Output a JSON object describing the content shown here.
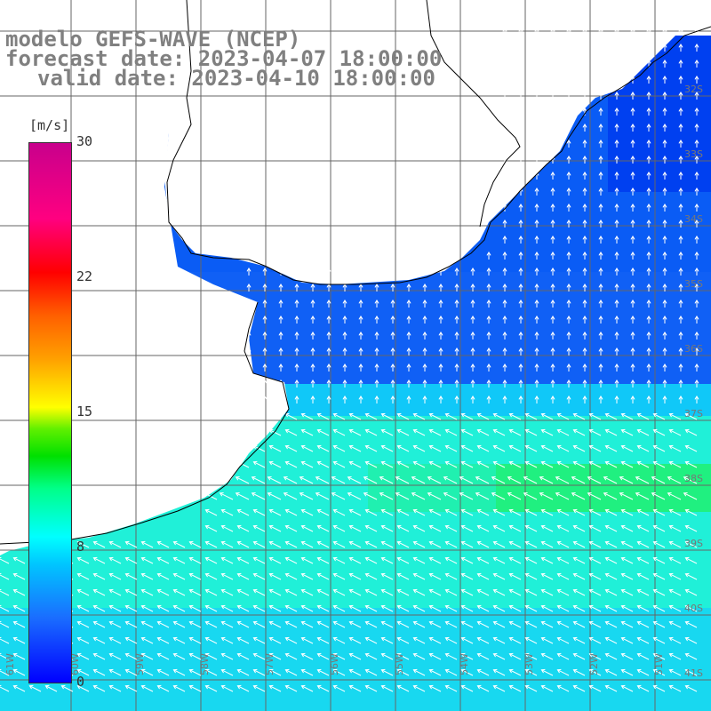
{
  "title": {
    "line1": "modelo GEFS-WAVE (NCEP)",
    "line2": "forecast date: 2023-04-07 18:00:00",
    "line3": "valid date: 2023-04-10 18:00:00"
  },
  "colorbar": {
    "unit": "[m/s]",
    "min": 0,
    "max": 30,
    "ticks": [
      "0",
      "8",
      "15",
      "22",
      "30"
    ]
  },
  "colors": {
    "land": "#ffffff",
    "coast": "#000000",
    "grid": "#666666",
    "arrow": "#ffffff",
    "text": "#808080"
  },
  "axes": {
    "lat_labels": [
      "32S",
      "33S",
      "34S",
      "35S",
      "36S",
      "37S",
      "38S",
      "39S",
      "40S",
      "41S"
    ],
    "lon_labels": [
      "61W",
      "60W",
      "59W",
      "58W",
      "57W",
      "56W",
      "55W",
      "54W",
      "53W",
      "52W",
      "51W"
    ]
  }
}
